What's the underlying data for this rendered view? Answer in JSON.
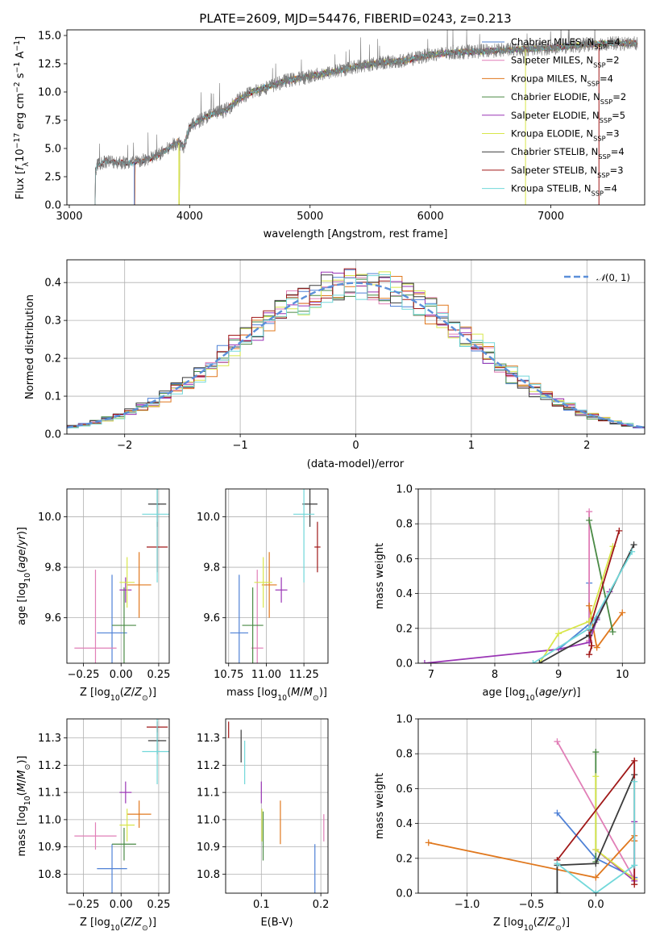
{
  "colors": {
    "chabrier_miles": "#4f81d6",
    "salpeter_miles": "#e17fb7",
    "kroupa_miles": "#e0781e",
    "chabrier_elodie": "#4a8a45",
    "salpeter_elodie": "#9a35b5",
    "kroupa_elodie": "#d8e64a",
    "chabrier_stelib": "#3a3a3a",
    "salpeter_stelib": "#a01818",
    "kroupa_stelib": "#72d8da",
    "data_spectrum": "#7a7a7a",
    "gauss": "#5b8fd9",
    "grid": "#b0b0b0"
  },
  "chart_data": [
    {
      "id": "spectrum",
      "type": "line",
      "title": "PLATE=2609, MJD=54476, FIBERID=0243, z=0.213",
      "xlabel": "wavelength [Angstrom, rest frame]",
      "ylabel": "Flux [fλ10⁻¹⁷ erg cm⁻² s⁻¹ A⁻¹]",
      "xlim": [
        2980,
        7780
      ],
      "ylim": [
        0,
        15.5
      ],
      "xticks": [
        3000,
        4000,
        5000,
        6000,
        7000
      ],
      "yticks": [
        0.0,
        2.5,
        5.0,
        7.5,
        10.0,
        12.5,
        15.0
      ],
      "legend_position": "top-right",
      "legend": [
        {
          "key": "chabrier_miles",
          "label": "Chabrier MILES, N",
          "sub": "SSP",
          "suffix": "=4"
        },
        {
          "key": "salpeter_miles",
          "label": "Salpeter MILES, N",
          "sub": "SSP",
          "suffix": "=2"
        },
        {
          "key": "kroupa_miles",
          "label": "Kroupa MILES, N",
          "sub": "SSP",
          "suffix": "=4"
        },
        {
          "key": "chabrier_elodie",
          "label": "Chabrier ELODIE, N",
          "sub": "SSP",
          "suffix": "=2"
        },
        {
          "key": "salpeter_elodie",
          "label": "Salpeter ELODIE, N",
          "sub": "SSP",
          "suffix": "=5"
        },
        {
          "key": "kroupa_elodie",
          "label": "Kroupa ELODIE, N",
          "sub": "SSP",
          "suffix": "=3"
        },
        {
          "key": "chabrier_stelib",
          "label": "Chabrier STELIB, N",
          "sub": "SSP",
          "suffix": "=4"
        },
        {
          "key": "salpeter_stelib",
          "label": "Salpeter STELIB, N",
          "sub": "SSP",
          "suffix": "=3"
        },
        {
          "key": "kroupa_stelib",
          "label": "Kroupa STELIB, N",
          "sub": "SSP",
          "suffix": "=4"
        }
      ],
      "continuum_x": [
        3200,
        3230,
        3300,
        3400,
        3500,
        3600,
        3700,
        3800,
        3900,
        3950,
        4000,
        4100,
        4200,
        4300,
        4400,
        4500,
        4600,
        4700,
        4800,
        4900,
        5000,
        5200,
        5400,
        5600,
        5800,
        6000,
        6200,
        6400,
        6600,
        6800,
        7000,
        7200,
        7400
      ],
      "continuum_y": [
        2.0,
        3.5,
        3.9,
        3.8,
        3.7,
        3.9,
        4.2,
        4.8,
        5.6,
        5.2,
        6.9,
        7.6,
        8.1,
        8.4,
        9.3,
        9.9,
        10.3,
        10.6,
        11.0,
        11.2,
        11.4,
        11.8,
        12.3,
        12.6,
        12.8,
        13.3,
        13.5,
        13.6,
        13.7,
        13.8,
        13.9,
        14.1,
        14.3
      ]
    },
    {
      "id": "residuals",
      "type": "step",
      "xlabel": "(data-model)/error",
      "ylabel": "Normed distribution",
      "xlim": [
        -2.5,
        2.5
      ],
      "ylim": [
        0,
        0.46
      ],
      "xticks": [
        -2,
        -1,
        0,
        1,
        2
      ],
      "xtick_labels": [
        "−2",
        "−1",
        "0",
        "1",
        "2"
      ],
      "yticks": [
        0.0,
        0.1,
        0.2,
        0.3,
        0.4
      ],
      "legend": [
        {
          "key": "gauss",
          "label": "𝒩(0,1)"
        }
      ],
      "bin_width": 0.1
    },
    {
      "id": "age_vs_Z",
      "type": "errorbar",
      "xlabel": "Z [log₁₀(Z/Z⊙)]",
      "ylabel": "age  [log₁₀(age/yr)]",
      "xlim": [
        -0.36,
        0.32
      ],
      "ylim": [
        9.42,
        10.11
      ],
      "xticks": [
        -0.25,
        0.0,
        0.25
      ],
      "xtick_labels": [
        "−0.25",
        "0.00",
        "0.25"
      ],
      "yticks": [
        9.6,
        9.8,
        10.0
      ],
      "points": [
        {
          "key": "chabrier_miles",
          "x": -0.06,
          "xerr": 0.1,
          "y": 9.54,
          "yerr": 0.23
        },
        {
          "key": "salpeter_miles",
          "x": -0.17,
          "xerr": 0.14,
          "y": 9.48,
          "yerr": 0.31
        },
        {
          "key": "kroupa_miles",
          "x": 0.12,
          "xerr": 0.08,
          "y": 9.73,
          "yerr": 0.13
        },
        {
          "key": "chabrier_elodie",
          "x": 0.02,
          "xerr": 0.08,
          "y": 9.57,
          "yerr": 0.15
        },
        {
          "key": "salpeter_elodie",
          "x": 0.03,
          "xerr": 0.04,
          "y": 9.71,
          "yerr": 0.05
        },
        {
          "key": "kroupa_elodie",
          "x": 0.04,
          "xerr": 0.05,
          "y": 9.74,
          "yerr": 0.1
        },
        {
          "key": "chabrier_stelib",
          "x": 0.24,
          "xerr": 0.06,
          "y": 10.05,
          "yerr": 0.09
        },
        {
          "key": "salpeter_stelib",
          "x": 0.24,
          "xerr": 0.07,
          "y": 9.88,
          "yerr": 0.1
        },
        {
          "key": "kroupa_stelib",
          "x": 0.24,
          "xerr": 0.1,
          "y": 10.01,
          "yerr": 0.27
        }
      ]
    },
    {
      "id": "age_vs_mass",
      "type": "errorbar",
      "xlabel": "mass [log₁₀(M/M⊙)]",
      "ylabel": "",
      "xlim": [
        10.73,
        11.41
      ],
      "ylim": [
        9.42,
        10.11
      ],
      "xticks": [
        10.75,
        11.0,
        11.25
      ],
      "xtick_labels": [
        "10.75",
        "11.00",
        "11.25"
      ],
      "yticks": [
        9.6,
        9.8,
        10.0
      ],
      "points": [
        {
          "key": "chabrier_miles",
          "x": 10.82,
          "xerr": 0.06,
          "y": 9.54,
          "yerr": 0.23
        },
        {
          "key": "salpeter_miles",
          "x": 10.94,
          "xerr": 0.04,
          "y": 9.48,
          "yerr": 0.31
        },
        {
          "key": "kroupa_miles",
          "x": 11.02,
          "xerr": 0.05,
          "y": 9.73,
          "yerr": 0.13
        },
        {
          "key": "chabrier_elodie",
          "x": 10.91,
          "xerr": 0.07,
          "y": 9.57,
          "yerr": 0.15
        },
        {
          "key": "salpeter_elodie",
          "x": 11.1,
          "xerr": 0.04,
          "y": 9.71,
          "yerr": 0.05
        },
        {
          "key": "kroupa_elodie",
          "x": 10.98,
          "xerr": 0.06,
          "y": 9.74,
          "yerr": 0.1
        },
        {
          "key": "chabrier_stelib",
          "x": 11.29,
          "xerr": 0.05,
          "y": 10.05,
          "yerr": 0.09
        },
        {
          "key": "salpeter_stelib",
          "x": 11.34,
          "xerr": 0.02,
          "y": 9.88,
          "yerr": 0.1
        },
        {
          "key": "kroupa_stelib",
          "x": 11.25,
          "xerr": 0.07,
          "y": 10.01,
          "yerr": 0.27
        }
      ]
    },
    {
      "id": "weight_vs_age",
      "type": "line",
      "xlabel": "age  [log₁₀(age/yr)]",
      "ylabel": "mass weight",
      "xlim": [
        6.8,
        10.35
      ],
      "ylim": [
        0,
        1
      ],
      "xticks": [
        7,
        8,
        9,
        10
      ],
      "yticks": [
        0.0,
        0.2,
        0.4,
        0.6,
        0.8,
        1.0
      ],
      "series": [
        {
          "key": "chabrier_miles",
          "x": [
            9.48,
            9.48,
            9.6,
            9.0
          ],
          "y": [
            0.46,
            0.16,
            0.26,
            0.08
          ]
        },
        {
          "key": "salpeter_miles",
          "x": [
            9.48,
            9.48
          ],
          "y": [
            0.87,
            0.13
          ]
        },
        {
          "key": "kroupa_miles",
          "x": [
            9.48,
            9.6,
            10.0
          ],
          "y": [
            0.33,
            0.09,
            0.29
          ]
        },
        {
          "key": "chabrier_elodie",
          "x": [
            9.48,
            9.85
          ],
          "y": [
            0.82,
            0.18
          ]
        },
        {
          "key": "salpeter_elodie",
          "x": [
            6.9,
            9.0,
            9.48,
            9.6,
            9.8
          ],
          "y": [
            0.0,
            0.08,
            0.12,
            0.25,
            0.41
          ]
        },
        {
          "key": "kroupa_elodie",
          "x": [
            8.7,
            9.0,
            9.48,
            9.85
          ],
          "y": [
            0.0,
            0.17,
            0.24,
            0.67
          ]
        },
        {
          "key": "chabrier_stelib",
          "x": [
            8.7,
            9.48,
            10.18
          ],
          "y": [
            0.0,
            0.16,
            0.68
          ]
        },
        {
          "key": "salpeter_stelib",
          "x": [
            9.48,
            9.52,
            9.48,
            9.95
          ],
          "y": [
            0.05,
            0.1,
            0.19,
            0.76
          ]
        },
        {
          "key": "kroupa_stelib",
          "x": [
            8.6,
            9.48,
            10.15
          ],
          "y": [
            0.0,
            0.2,
            0.64
          ]
        }
      ]
    },
    {
      "id": "mass_vs_Z",
      "type": "errorbar",
      "xlabel": "Z [log₁₀(Z/Z⊙)]",
      "ylabel": "mass [log₁₀(M/M⊙)]",
      "xlim": [
        -0.36,
        0.32
      ],
      "ylim": [
        10.73,
        11.37
      ],
      "xticks": [
        -0.25,
        0.0,
        0.25
      ],
      "xtick_labels": [
        "−0.25",
        "0.00",
        "0.25"
      ],
      "yticks": [
        10.8,
        10.9,
        11.0,
        11.1,
        11.2,
        11.3
      ],
      "points": [
        {
          "key": "chabrier_miles",
          "x": -0.06,
          "xerr": 0.1,
          "y": 10.82,
          "yerr": 0.09
        },
        {
          "key": "salpeter_miles",
          "x": -0.17,
          "xerr": 0.14,
          "y": 10.94,
          "yerr": 0.05
        },
        {
          "key": "kroupa_miles",
          "x": 0.12,
          "xerr": 0.08,
          "y": 11.02,
          "yerr": 0.05
        },
        {
          "key": "chabrier_elodie",
          "x": 0.02,
          "xerr": 0.08,
          "y": 10.91,
          "yerr": 0.06
        },
        {
          "key": "salpeter_elodie",
          "x": 0.03,
          "xerr": 0.04,
          "y": 11.1,
          "yerr": 0.04
        },
        {
          "key": "kroupa_elodie",
          "x": 0.04,
          "xerr": 0.05,
          "y": 10.98,
          "yerr": 0.06
        },
        {
          "key": "chabrier_stelib",
          "x": 0.24,
          "xerr": 0.06,
          "y": 11.29,
          "yerr": 0.05
        },
        {
          "key": "salpeter_stelib",
          "x": 0.24,
          "xerr": 0.07,
          "y": 11.34,
          "yerr": 0.02
        },
        {
          "key": "kroupa_stelib",
          "x": 0.24,
          "xerr": 0.1,
          "y": 11.25,
          "yerr": 0.12
        }
      ]
    },
    {
      "id": "mass_vs_ebv",
      "type": "errorbar",
      "xlabel": "E(B-V)",
      "ylabel": "",
      "xlim": [
        0.04,
        0.212
      ],
      "ylim": [
        10.73,
        11.37
      ],
      "xticks": [
        0.1,
        0.2
      ],
      "xtick_labels": [
        "0.1",
        "0.2"
      ],
      "yticks": [
        10.8,
        10.9,
        11.0,
        11.1,
        11.2,
        11.3
      ],
      "points": [
        {
          "key": "chabrier_miles",
          "x": 0.19,
          "xerr": 0,
          "y": 10.82,
          "yerr": 0.09
        },
        {
          "key": "salpeter_miles",
          "x": 0.205,
          "xerr": 0,
          "y": 10.97,
          "yerr": 0.05
        },
        {
          "key": "kroupa_miles",
          "x": 0.132,
          "xerr": 0,
          "y": 10.99,
          "yerr": 0.08
        },
        {
          "key": "chabrier_elodie",
          "x": 0.103,
          "xerr": 0,
          "y": 10.94,
          "yerr": 0.09
        },
        {
          "key": "salpeter_elodie",
          "x": 0.1,
          "xerr": 0,
          "y": 11.1,
          "yerr": 0.04
        },
        {
          "key": "kroupa_elodie",
          "x": 0.101,
          "xerr": 0,
          "y": 10.98,
          "yerr": 0.06
        },
        {
          "key": "chabrier_stelib",
          "x": 0.066,
          "xerr": 0,
          "y": 11.27,
          "yerr": 0.06
        },
        {
          "key": "salpeter_stelib",
          "x": 0.045,
          "xerr": 0,
          "y": 11.33,
          "yerr": 0.03
        },
        {
          "key": "kroupa_stelib",
          "x": 0.072,
          "xerr": 0,
          "y": 11.21,
          "yerr": 0.08
        }
      ]
    },
    {
      "id": "weight_vs_Z",
      "type": "line",
      "xlabel": "Z [log₁₀(Z/Z⊙)]",
      "ylabel": "mass weight",
      "xlim": [
        -1.38,
        0.38
      ],
      "ylim": [
        0,
        1
      ],
      "xticks": [
        -1.0,
        -0.5,
        0.0
      ],
      "xtick_labels": [
        "−1.0",
        "−0.5",
        "0.0"
      ],
      "yticks": [
        0.0,
        0.2,
        0.4,
        0.6,
        0.8,
        1.0
      ],
      "series": [
        {
          "key": "chabrier_miles",
          "x": [
            -0.3,
            0.0,
            0.3
          ],
          "y": [
            0.46,
            0.2,
            0.09
          ]
        },
        {
          "key": "salpeter_miles",
          "x": [
            -0.3,
            0.3
          ],
          "y": [
            0.87,
            0.08
          ]
        },
        {
          "key": "kroupa_miles",
          "x": [
            -1.3,
            0.0,
            0.3,
            0.3
          ],
          "y": [
            0.29,
            0.09,
            0.33,
            0.3
          ]
        },
        {
          "key": "chabrier_elodie",
          "x": [
            0.0,
            0.0
          ],
          "y": [
            0.81,
            0.18
          ]
        },
        {
          "key": "salpeter_elodie",
          "x": [
            0.0,
            0.3,
            0.3
          ],
          "y": [
            0.25,
            0.07,
            0.41
          ]
        },
        {
          "key": "kroupa_elodie",
          "x": [
            0.0,
            0.0,
            0.3
          ],
          "y": [
            0.67,
            0.25,
            0.08
          ]
        },
        {
          "key": "chabrier_stelib",
          "x": [
            -0.3,
            -0.3,
            0.0,
            0.3
          ],
          "y": [
            0.0,
            0.16,
            0.17,
            0.68
          ]
        },
        {
          "key": "salpeter_stelib",
          "x": [
            -0.3,
            0.3,
            0.3
          ],
          "y": [
            0.19,
            0.76,
            0.05
          ]
        },
        {
          "key": "kroupa_stelib",
          "x": [
            -0.3,
            0.0,
            0.3,
            0.3
          ],
          "y": [
            0.17,
            0.0,
            0.16,
            0.64
          ]
        }
      ]
    }
  ]
}
